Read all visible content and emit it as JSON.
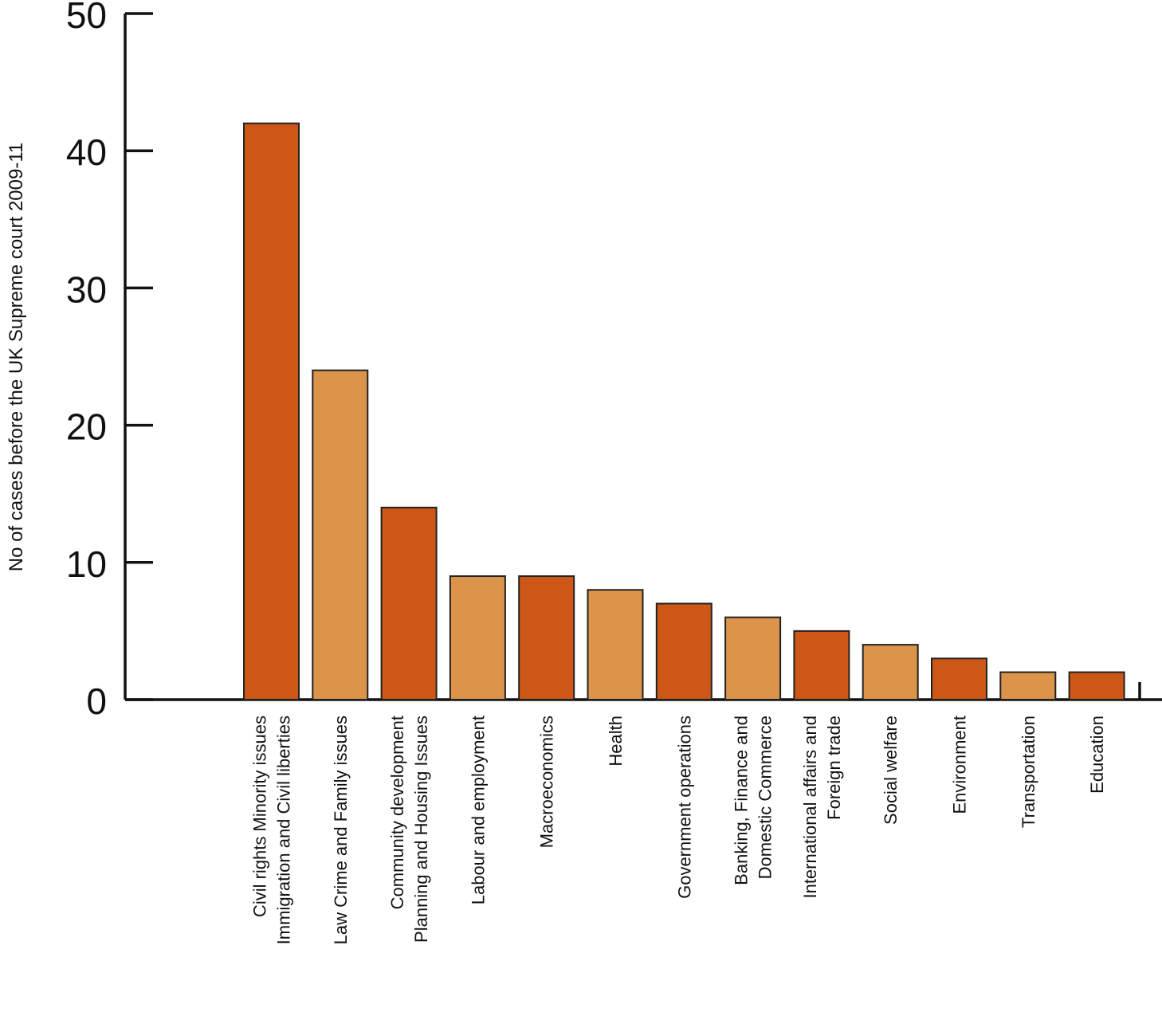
{
  "chart_data": {
    "type": "bar",
    "ylabel": "No of cases before the UK Supreme court 2009-11",
    "xlabel": "",
    "ylim": [
      0,
      50
    ],
    "yticks": [
      0,
      10,
      20,
      30,
      40,
      50
    ],
    "categories": [
      [
        "Civil rights Minority issues",
        "Immigration and Civil liberties"
      ],
      [
        "Law Crime and Family issues"
      ],
      [
        "Community development",
        "Planning and Housing Issues"
      ],
      [
        "Labour and employment"
      ],
      [
        "Macroeconomics"
      ],
      [
        "Health"
      ],
      [
        "Government operations"
      ],
      [
        "Banking, Finance and",
        "Domestic Commerce"
      ],
      [
        "International affairs and",
        "Foreign trade"
      ],
      [
        "Social welfare"
      ],
      [
        "Environment"
      ],
      [
        "Transportation"
      ],
      [
        "Education"
      ]
    ],
    "values": [
      42,
      24,
      14,
      9,
      9,
      8,
      7,
      6,
      5,
      4,
      3,
      2,
      2
    ],
    "colors": [
      "#cc5716",
      "#dc944a"
    ],
    "grid": false,
    "legend": "none"
  }
}
